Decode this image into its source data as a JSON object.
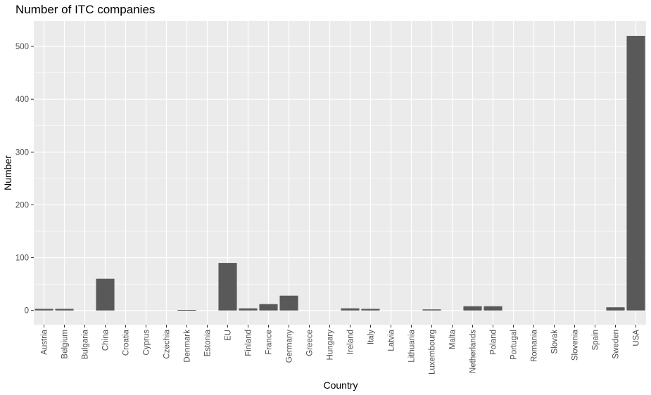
{
  "chart_data": {
    "type": "bar",
    "title": "Number of ITC companies",
    "xlabel": "Country",
    "ylabel": "Number",
    "categories": [
      "Austria",
      "Belgium",
      "Bulgaria",
      "China",
      "Croatia",
      "Cyprus",
      "Czechia",
      "Denmark",
      "Estonia",
      "EU",
      "Finland",
      "France",
      "Germany",
      "Greece",
      "Hungary",
      "Ireland",
      "Italy",
      "Latvia",
      "Lithuania",
      "Luxembourg",
      "Malta",
      "Netherlands",
      "Poland",
      "Portugal",
      "Romania",
      "Slovak",
      "Slovenia",
      "Spain",
      "Sweden",
      "USA"
    ],
    "values": [
      3,
      3,
      0,
      60,
      0,
      0,
      0,
      1,
      0,
      90,
      4,
      12,
      28,
      0,
      0,
      4,
      3,
      0,
      0,
      2,
      0,
      8,
      8,
      0,
      0,
      0,
      0,
      0,
      6,
      520
    ],
    "ylim": [
      -27,
      548
    ],
    "yticks": [
      0,
      100,
      200,
      300,
      400,
      500
    ],
    "grid": true,
    "colors": {
      "bar": "#595959",
      "panel": "#ebebeb",
      "grid": "#ffffff"
    }
  }
}
